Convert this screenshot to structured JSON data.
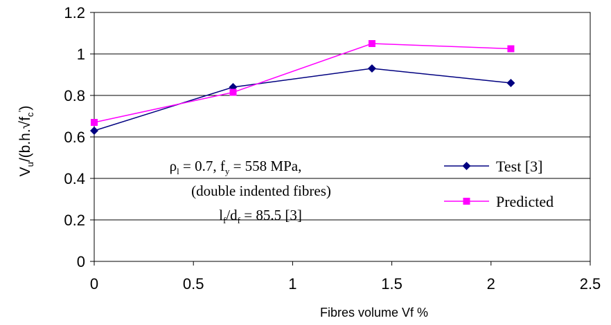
{
  "chart_data": {
    "type": "line",
    "title": "",
    "xlabel": "Fibres volume Vf %",
    "ylabel": {
      "parts": [
        "V",
        "u",
        "/(b.h.√f",
        "c",
        "’",
        ")"
      ]
    },
    "xlim": [
      0,
      2.5
    ],
    "ylim": [
      0,
      1.2
    ],
    "x_ticks": [
      "0",
      "0.5",
      "1",
      "1.5",
      "2",
      "2.5"
    ],
    "y_ticks": [
      "0",
      "0.2",
      "0.4",
      "0.6",
      "0.8",
      "1",
      "1.2"
    ],
    "grid": "horizontal",
    "legend_position": "right",
    "series": [
      {
        "name": "Test [3]",
        "color": "#000080",
        "marker": "diamond",
        "x": [
          0,
          0.7,
          1.4,
          2.1
        ],
        "y": [
          0.63,
          0.84,
          0.93,
          0.86
        ]
      },
      {
        "name": "Predicted",
        "color": "#ff00ff",
        "marker": "square",
        "x": [
          0,
          0.7,
          1.4,
          2.1
        ],
        "y": [
          0.67,
          0.815,
          1.05,
          1.025
        ]
      }
    ],
    "annotation": {
      "line1": [
        "ρ",
        "l",
        " = 0.7, f",
        "y",
        " = 558 MPa,"
      ],
      "line2": "(double indented fibres)",
      "line3": [
        "l",
        "f",
        "/d",
        "f",
        " = 85.5 [3]"
      ]
    }
  }
}
